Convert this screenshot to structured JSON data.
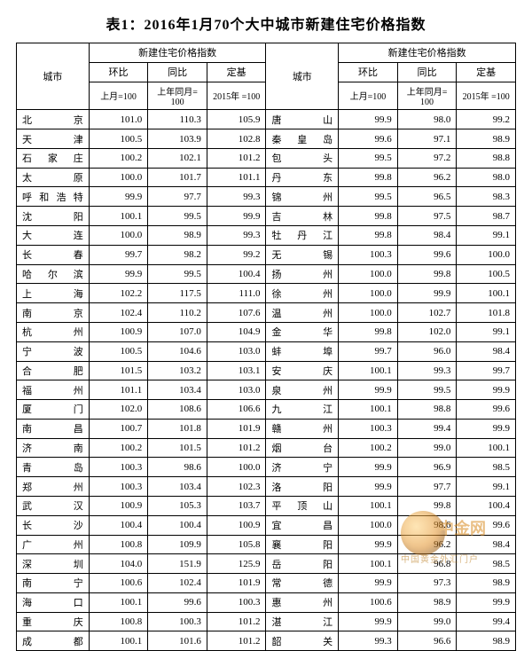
{
  "title": "表1：2016年1月70个大中城市新建住宅价格指数",
  "header": {
    "city": "城市",
    "group": "新建住宅价格指数",
    "mom": "环比",
    "yoy": "同比",
    "base": "定基",
    "mom_sub": "上月=100",
    "yoy_sub": "上年同月=\n100",
    "base_sub": "2015年\n=100"
  },
  "colwidth": {
    "city": "54",
    "num": "44"
  },
  "left": [
    {
      "c": "北　　京",
      "a": "101.0",
      "b": "110.3",
      "d": "105.9"
    },
    {
      "c": "天　　津",
      "a": "100.5",
      "b": "103.9",
      "d": "102.8"
    },
    {
      "c": "石 家 庄",
      "a": "100.2",
      "b": "102.1",
      "d": "101.2"
    },
    {
      "c": "太　　原",
      "a": "100.0",
      "b": "101.7",
      "d": "101.1"
    },
    {
      "c": "呼和浩特",
      "a": "99.9",
      "b": "97.7",
      "d": "99.3"
    },
    {
      "c": "沈　　阳",
      "a": "100.1",
      "b": "99.5",
      "d": "99.9"
    },
    {
      "c": "大　　连",
      "a": "100.0",
      "b": "98.9",
      "d": "99.3"
    },
    {
      "c": "长　　春",
      "a": "99.7",
      "b": "98.2",
      "d": "99.2"
    },
    {
      "c": "哈 尔 滨",
      "a": "99.9",
      "b": "99.5",
      "d": "100.4"
    },
    {
      "c": "上　　海",
      "a": "102.2",
      "b": "117.5",
      "d": "111.0"
    },
    {
      "c": "南　　京",
      "a": "102.4",
      "b": "110.2",
      "d": "107.6"
    },
    {
      "c": "杭　　州",
      "a": "100.9",
      "b": "107.0",
      "d": "104.9"
    },
    {
      "c": "宁　　波",
      "a": "100.5",
      "b": "104.6",
      "d": "103.0"
    },
    {
      "c": "合　　肥",
      "a": "101.5",
      "b": "103.2",
      "d": "103.1"
    },
    {
      "c": "福　　州",
      "a": "101.1",
      "b": "103.4",
      "d": "103.0"
    },
    {
      "c": "厦　　门",
      "a": "102.0",
      "b": "108.6",
      "d": "106.6"
    },
    {
      "c": "南　　昌",
      "a": "100.7",
      "b": "101.8",
      "d": "101.9"
    },
    {
      "c": "济　　南",
      "a": "100.2",
      "b": "101.5",
      "d": "101.2"
    },
    {
      "c": "青　　岛",
      "a": "100.3",
      "b": "98.6",
      "d": "100.0"
    },
    {
      "c": "郑　　州",
      "a": "100.3",
      "b": "103.4",
      "d": "102.3"
    },
    {
      "c": "武　　汉",
      "a": "100.9",
      "b": "105.3",
      "d": "103.7"
    },
    {
      "c": "长　　沙",
      "a": "100.4",
      "b": "100.4",
      "d": "100.9"
    },
    {
      "c": "广　　州",
      "a": "100.8",
      "b": "109.9",
      "d": "105.8"
    },
    {
      "c": "深　　圳",
      "a": "104.0",
      "b": "151.9",
      "d": "125.9"
    },
    {
      "c": "南　　宁",
      "a": "100.6",
      "b": "102.4",
      "d": "101.9"
    },
    {
      "c": "海　　口",
      "a": "100.1",
      "b": "99.6",
      "d": "100.3"
    },
    {
      "c": "重　　庆",
      "a": "100.8",
      "b": "100.3",
      "d": "101.2"
    },
    {
      "c": "成　　都",
      "a": "100.1",
      "b": "101.6",
      "d": "101.2"
    }
  ],
  "right": [
    {
      "c": "唐　　山",
      "a": "99.9",
      "b": "98.0",
      "d": "99.2"
    },
    {
      "c": "秦 皇 岛",
      "a": "99.6",
      "b": "97.1",
      "d": "98.9"
    },
    {
      "c": "包　　头",
      "a": "99.5",
      "b": "97.2",
      "d": "98.8"
    },
    {
      "c": "丹　　东",
      "a": "99.8",
      "b": "96.2",
      "d": "98.0"
    },
    {
      "c": "锦　　州",
      "a": "99.5",
      "b": "96.5",
      "d": "98.3"
    },
    {
      "c": "吉　　林",
      "a": "99.8",
      "b": "97.5",
      "d": "98.7"
    },
    {
      "c": "牡 丹 江",
      "a": "99.8",
      "b": "98.4",
      "d": "99.1"
    },
    {
      "c": "无　　锡",
      "a": "100.3",
      "b": "99.6",
      "d": "100.0"
    },
    {
      "c": "扬　　州",
      "a": "100.0",
      "b": "99.8",
      "d": "100.5"
    },
    {
      "c": "徐　　州",
      "a": "100.0",
      "b": "99.9",
      "d": "100.1"
    },
    {
      "c": "温　　州",
      "a": "100.0",
      "b": "102.7",
      "d": "101.8"
    },
    {
      "c": "金　　华",
      "a": "99.8",
      "b": "102.0",
      "d": "99.1"
    },
    {
      "c": "蚌　　埠",
      "a": "99.7",
      "b": "96.0",
      "d": "98.4"
    },
    {
      "c": "安　　庆",
      "a": "100.1",
      "b": "99.3",
      "d": "99.7"
    },
    {
      "c": "泉　　州",
      "a": "99.9",
      "b": "99.5",
      "d": "99.9"
    },
    {
      "c": "九　　江",
      "a": "100.1",
      "b": "98.8",
      "d": "99.6"
    },
    {
      "c": "赣　　州",
      "a": "100.3",
      "b": "99.4",
      "d": "99.9"
    },
    {
      "c": "烟　　台",
      "a": "100.2",
      "b": "99.0",
      "d": "100.1"
    },
    {
      "c": "济　　宁",
      "a": "99.9",
      "b": "96.9",
      "d": "98.5"
    },
    {
      "c": "洛　　阳",
      "a": "99.9",
      "b": "97.7",
      "d": "99.1"
    },
    {
      "c": "平 顶 山",
      "a": "100.1",
      "b": "99.8",
      "d": "100.4"
    },
    {
      "c": "宜　　昌",
      "a": "100.0",
      "b": "98.6",
      "d": "99.6"
    },
    {
      "c": "襄　　阳",
      "a": "99.9",
      "b": "96.2",
      "d": "98.4"
    },
    {
      "c": "岳　　阳",
      "a": "100.1",
      "b": "96.8",
      "d": "98.5"
    },
    {
      "c": "常　　德",
      "a": "99.9",
      "b": "97.3",
      "d": "98.9"
    },
    {
      "c": "惠　　州",
      "a": "100.6",
      "b": "98.9",
      "d": "99.9"
    },
    {
      "c": "湛　　江",
      "a": "99.9",
      "b": "99.0",
      "d": "99.4"
    },
    {
      "c": "韶　　关",
      "a": "99.3",
      "b": "96.6",
      "d": "98.9"
    }
  ],
  "watermark": {
    "main": "中金网",
    "sub": "中国黄金外汇门户"
  }
}
